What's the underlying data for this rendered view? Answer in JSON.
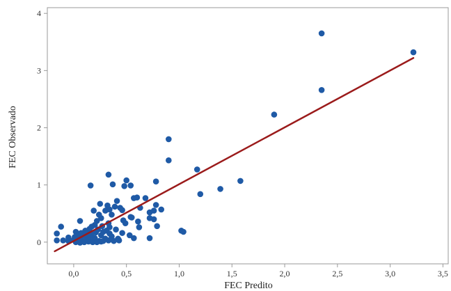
{
  "chart_data": {
    "type": "scatter",
    "xlabel": "FEC Predito",
    "ylabel": "FEC Observado",
    "xlim": [
      -0.25,
      3.55
    ],
    "ylim": [
      -0.38,
      4.1
    ],
    "xticks": [
      0.0,
      0.5,
      1.0,
      1.5,
      2.0,
      2.5,
      3.0,
      3.5
    ],
    "xtick_labels": [
      "0,0",
      "0,5",
      "1,0",
      "1,5",
      "2,0",
      "2,5",
      "3,0",
      "3,5"
    ],
    "yticks": [
      0,
      1,
      2,
      3,
      4
    ],
    "ytick_labels": [
      "0",
      "1",
      "2",
      "3",
      "4"
    ],
    "grid": false,
    "point_color": "#1f5aa6",
    "line_color": "#9b1b1b",
    "fit_line": {
      "x": [
        -0.18,
        3.22
      ],
      "y": [
        -0.16,
        3.22
      ]
    },
    "points": [
      [
        2.35,
        3.65
      ],
      [
        3.22,
        3.32
      ],
      [
        2.35,
        2.66
      ],
      [
        1.9,
        2.23
      ],
      [
        0.9,
        1.8
      ],
      [
        0.9,
        1.43
      ],
      [
        1.17,
        1.27
      ],
      [
        0.33,
        1.18
      ],
      [
        1.58,
        1.07
      ],
      [
        0.5,
        1.08
      ],
      [
        0.78,
        1.06
      ],
      [
        0.16,
        0.99
      ],
      [
        0.37,
        1.01
      ],
      [
        0.48,
        0.98
      ],
      [
        0.54,
        0.99
      ],
      [
        1.39,
        0.93
      ],
      [
        1.2,
        0.84
      ],
      [
        0.6,
        0.78
      ],
      [
        0.57,
        0.77
      ],
      [
        0.68,
        0.77
      ],
      [
        0.41,
        0.72
      ],
      [
        0.25,
        0.67
      ],
      [
        0.32,
        0.64
      ],
      [
        0.39,
        0.62
      ],
      [
        0.44,
        0.6
      ],
      [
        0.63,
        0.6
      ],
      [
        0.78,
        0.65
      ],
      [
        0.34,
        0.57
      ],
      [
        0.19,
        0.55
      ],
      [
        0.3,
        0.55
      ],
      [
        0.46,
        0.56
      ],
      [
        0.83,
        0.57
      ],
      [
        0.72,
        0.52
      ],
      [
        0.76,
        0.55
      ],
      [
        0.24,
        0.48
      ],
      [
        0.36,
        0.48
      ],
      [
        0.54,
        0.44
      ],
      [
        0.55,
        0.43
      ],
      [
        0.72,
        0.42
      ],
      [
        0.26,
        0.42
      ],
      [
        0.76,
        0.4
      ],
      [
        0.47,
        0.38
      ],
      [
        0.61,
        0.36
      ],
      [
        0.06,
        0.37
      ],
      [
        0.22,
        0.37
      ],
      [
        -0.12,
        0.27
      ],
      [
        0.2,
        0.3
      ],
      [
        0.33,
        0.33
      ],
      [
        0.49,
        0.33
      ],
      [
        0.79,
        0.28
      ],
      [
        0.17,
        0.27
      ],
      [
        0.27,
        0.28
      ],
      [
        0.34,
        0.26
      ],
      [
        0.62,
        0.26
      ],
      [
        1.02,
        0.2
      ],
      [
        1.04,
        0.18
      ],
      [
        0.15,
        0.23
      ],
      [
        0.23,
        0.22
      ],
      [
        0.31,
        0.2
      ],
      [
        0.4,
        0.22
      ],
      [
        0.02,
        0.18
      ],
      [
        0.12,
        0.18
      ],
      [
        0.21,
        0.17
      ],
      [
        0.28,
        0.18
      ],
      [
        0.34,
        0.15
      ],
      [
        0.46,
        0.16
      ],
      [
        -0.16,
        0.15
      ],
      [
        0.06,
        0.13
      ],
      [
        0.1,
        0.13
      ],
      [
        0.17,
        0.14
      ],
      [
        0.26,
        0.12
      ],
      [
        0.36,
        0.1
      ],
      [
        0.53,
        0.12
      ],
      [
        -0.05,
        0.08
      ],
      [
        0.01,
        0.09
      ],
      [
        0.05,
        0.07
      ],
      [
        0.13,
        0.08
      ],
      [
        0.2,
        0.07
      ],
      [
        0.3,
        0.06
      ],
      [
        0.42,
        0.06
      ],
      [
        0.57,
        0.07
      ],
      [
        0.72,
        0.07
      ],
      [
        -0.16,
        0.03
      ],
      [
        -0.1,
        0.03
      ],
      [
        -0.05,
        0.02
      ],
      [
        0.0,
        0.04
      ],
      [
        0.04,
        0.03
      ],
      [
        0.08,
        0.02
      ],
      [
        0.12,
        0.03
      ],
      [
        0.16,
        0.02
      ],
      [
        0.2,
        0.03
      ],
      [
        0.24,
        0.02
      ],
      [
        0.28,
        0.02
      ],
      [
        0.33,
        0.03
      ],
      [
        0.38,
        0.02
      ],
      [
        0.43,
        0.03
      ],
      [
        0.02,
        0.0
      ],
      [
        0.06,
        -0.01
      ],
      [
        0.1,
        0.0
      ],
      [
        0.14,
        0.01
      ],
      [
        0.18,
        0.0
      ],
      [
        0.22,
        0.0
      ],
      [
        0.26,
        0.01
      ],
      [
        0.03,
        0.1
      ],
      [
        0.09,
        0.11
      ],
      [
        0.15,
        0.1
      ],
      [
        0.07,
        0.16
      ],
      [
        0.11,
        0.2
      ]
    ]
  }
}
